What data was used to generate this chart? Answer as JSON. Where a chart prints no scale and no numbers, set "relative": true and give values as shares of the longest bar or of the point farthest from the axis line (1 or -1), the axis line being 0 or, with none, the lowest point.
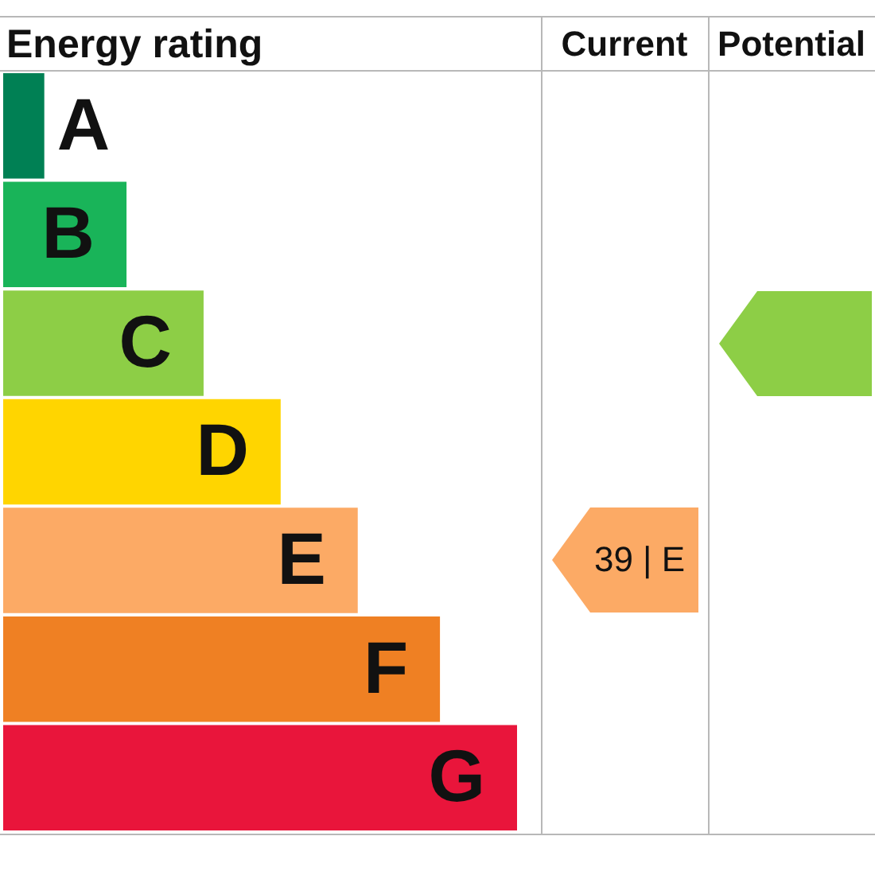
{
  "chart_data": {
    "type": "bar",
    "title": "Energy rating",
    "orientation": "horizontal",
    "relative": true,
    "categories": [
      "A",
      "B",
      "C",
      "D",
      "E",
      "F",
      "G"
    ],
    "values": [
      0.08,
      0.24,
      0.39,
      0.54,
      0.69,
      0.85,
      1
    ],
    "colors": [
      "#008054",
      "#19b459",
      "#8dce46",
      "#ffd500",
      "#fcaa65",
      "#ef8023",
      "#e9153b"
    ],
    "annotations": [
      "Current",
      "Potential",
      "39 | E"
    ]
  }
}
